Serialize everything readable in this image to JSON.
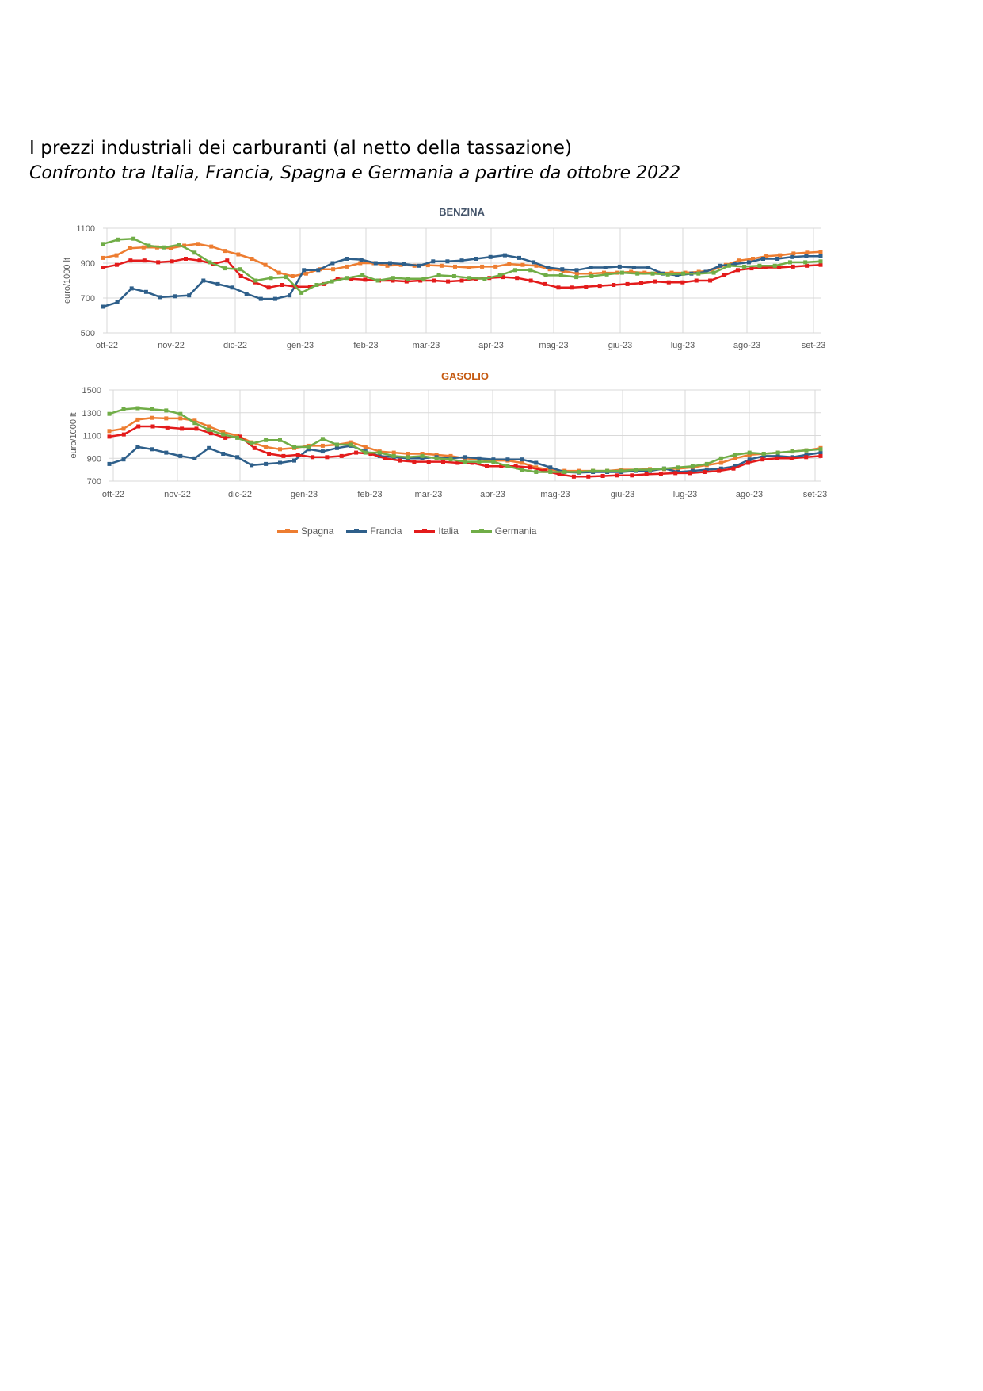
{
  "title": "I prezzi industriali dei carburanti (al netto della tassazione)",
  "subtitle": "Confronto tra Italia, Francia, Spagna e Germania a partire da ottobre 2022",
  "colors": {
    "Spagna": "#ED7D31",
    "Francia": "#2E5F8A",
    "Italia": "#E31B1B",
    "Germania": "#70AD47",
    "grid": "#D9D9D9",
    "axis_text": "#595959",
    "benzina_title": "#44546A",
    "gasolio_title": "#C55A11"
  },
  "legend": [
    {
      "name": "Spagna",
      "color": "#ED7D31"
    },
    {
      "name": "Francia",
      "color": "#2E5F8A"
    },
    {
      "name": "Italia",
      "color": "#E31B1B"
    },
    {
      "name": "Germania",
      "color": "#70AD47"
    }
  ],
  "chart_data": [
    {
      "type": "line",
      "title": "BENZINA",
      "xlabel": "",
      "ylabel": "euro/1000 lt",
      "ylim": [
        500,
        1100
      ],
      "yticks": [
        500,
        700,
        900,
        1100
      ],
      "x_tick_labels": [
        "ott-22",
        "nov-22",
        "dic-22",
        "gen-23",
        "feb-23",
        "mar-23",
        "apr-23",
        "mag-23",
        "giu-23",
        "lug-23",
        "ago-23",
        "set-23"
      ],
      "grid": true,
      "legend_position": "bottom",
      "series": [
        {
          "name": "Spagna",
          "values": [
            930,
            945,
            985,
            990,
            990,
            985,
            1000,
            1010,
            995,
            970,
            950,
            925,
            890,
            845,
            825,
            840,
            865,
            865,
            880,
            900,
            900,
            885,
            890,
            885,
            888,
            885,
            880,
            875,
            880,
            880,
            895,
            890,
            885,
            865,
            855,
            840,
            840,
            845,
            845,
            850,
            845,
            845,
            845,
            845,
            850,
            860,
            890,
            915,
            925,
            940,
            945,
            955,
            960,
            965
          ]
        },
        {
          "name": "Francia",
          "values": [
            650,
            675,
            755,
            735,
            705,
            710,
            715,
            800,
            780,
            760,
            725,
            695,
            695,
            715,
            860,
            860,
            900,
            925,
            920,
            900,
            900,
            895,
            885,
            910,
            910,
            915,
            925,
            935,
            945,
            930,
            905,
            875,
            865,
            860,
            875,
            875,
            880,
            875,
            875,
            840,
            830,
            840,
            850,
            885,
            895,
            905,
            925,
            925,
            935,
            940,
            940
          ]
        },
        {
          "name": "Italia",
          "values": [
            875,
            890,
            915,
            915,
            905,
            910,
            925,
            915,
            895,
            915,
            825,
            790,
            760,
            775,
            765,
            765,
            780,
            810,
            810,
            805,
            800,
            800,
            795,
            800,
            800,
            795,
            800,
            810,
            815,
            820,
            815,
            800,
            780,
            760,
            760,
            765,
            770,
            775,
            780,
            785,
            795,
            790,
            790,
            800,
            800,
            830,
            860,
            870,
            875,
            875,
            880,
            885,
            890
          ]
        },
        {
          "name": "Germania",
          "values": [
            1010,
            1035,
            1040,
            1000,
            990,
            1005,
            960,
            905,
            870,
            865,
            800,
            815,
            820,
            730,
            775,
            795,
            815,
            830,
            800,
            815,
            810,
            810,
            830,
            825,
            815,
            810,
            830,
            860,
            860,
            830,
            830,
            820,
            825,
            835,
            845,
            840,
            840,
            835,
            840,
            840,
            845,
            885,
            880,
            885,
            885,
            905,
            905,
            910
          ]
        }
      ]
    },
    {
      "type": "line",
      "title": "GASOLIO",
      "xlabel": "",
      "ylabel": "euro/1000 lt",
      "ylim": [
        700,
        1500
      ],
      "yticks": [
        700,
        900,
        1100,
        1300,
        1500
      ],
      "x_tick_labels": [
        "ott-22",
        "nov-22",
        "dic-22",
        "gen-23",
        "feb-23",
        "mar-23",
        "apr-23",
        "mag-23",
        "giu-23",
        "lug-23",
        "ago-23",
        "set-23"
      ],
      "grid": true,
      "legend_position": "bottom",
      "series": [
        {
          "name": "Spagna",
          "values": [
            1140,
            1160,
            1240,
            1255,
            1250,
            1250,
            1230,
            1180,
            1130,
            1100,
            1040,
            1000,
            980,
            990,
            1010,
            1010,
            1020,
            1040,
            1000,
            960,
            950,
            940,
            940,
            930,
            920,
            900,
            890,
            880,
            880,
            860,
            820,
            800,
            790,
            790,
            790,
            790,
            800,
            800,
            805,
            805,
            810,
            820,
            840,
            860,
            900,
            930,
            940,
            950,
            960,
            970,
            990
          ]
        },
        {
          "name": "Francia",
          "values": [
            850,
            890,
            1000,
            980,
            950,
            920,
            900,
            990,
            940,
            910,
            840,
            850,
            860,
            880,
            980,
            960,
            990,
            1010,
            960,
            920,
            910,
            900,
            900,
            910,
            900,
            910,
            900,
            890,
            890,
            890,
            860,
            820,
            780,
            775,
            780,
            780,
            780,
            790,
            790,
            810,
            780,
            790,
            800,
            810,
            830,
            890,
            920,
            920,
            910,
            930,
            950
          ]
        },
        {
          "name": "Italia",
          "values": [
            1090,
            1110,
            1180,
            1180,
            1170,
            1160,
            1160,
            1120,
            1080,
            1090,
            990,
            940,
            920,
            930,
            910,
            910,
            920,
            950,
            940,
            900,
            880,
            870,
            870,
            870,
            860,
            860,
            830,
            830,
            830,
            820,
            790,
            760,
            740,
            740,
            745,
            750,
            750,
            760,
            765,
            770,
            770,
            780,
            790,
            810,
            860,
            890,
            900,
            900,
            910,
            920
          ]
        },
        {
          "name": "Germania",
          "values": [
            1290,
            1330,
            1340,
            1330,
            1320,
            1290,
            1210,
            1150,
            1110,
            1080,
            1030,
            1060,
            1060,
            1000,
            1000,
            1070,
            1020,
            1020,
            950,
            950,
            920,
            910,
            920,
            900,
            890,
            870,
            870,
            870,
            830,
            800,
            780,
            780,
            780,
            780,
            790,
            790,
            790,
            800,
            800,
            810,
            820,
            830,
            850,
            900,
            930,
            950,
            940,
            950,
            960,
            970,
            980
          ]
        }
      ]
    }
  ]
}
